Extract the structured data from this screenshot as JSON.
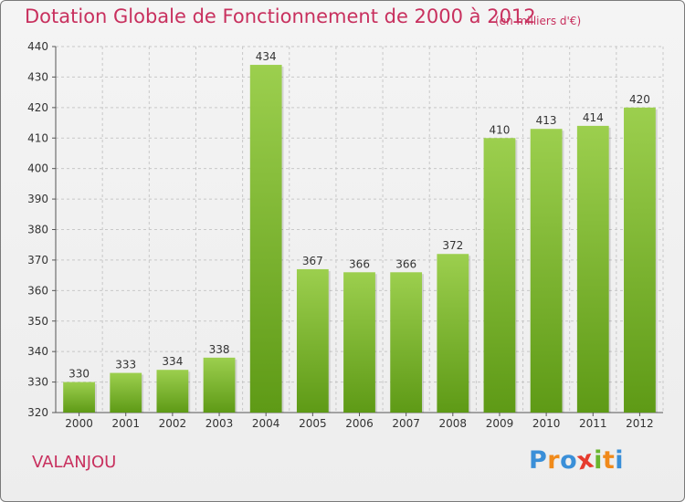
{
  "chart_data": {
    "type": "bar",
    "title": "Dotation Globale de Fonctionnement de 2000 à 2012",
    "unit_note": "(en milliers d'€)",
    "categories": [
      "2000",
      "2001",
      "2002",
      "2003",
      "2004",
      "2005",
      "2006",
      "2007",
      "2008",
      "2009",
      "2010",
      "2011",
      "2012"
    ],
    "values": [
      330,
      333,
      334,
      338,
      434,
      367,
      366,
      366,
      372,
      410,
      413,
      414,
      420
    ],
    "ylim": [
      320,
      440
    ],
    "yticks": [
      320,
      330,
      340,
      350,
      360,
      370,
      380,
      390,
      400,
      410,
      420,
      430,
      440
    ],
    "xlabel": "",
    "ylabel": "",
    "grid": true,
    "bar_color_top": "#9ccf4e",
    "bar_color_bottom": "#5e9a16"
  },
  "footer": {
    "commune": "VALANJOU",
    "brand_letters": [
      "P",
      "r",
      "o",
      "x",
      "i",
      "t",
      "i"
    ],
    "brand_colors": [
      "#3a8fd8",
      "#f08a1a",
      "#3a8fd8",
      "#e63b2e",
      "#69b52e",
      "#f08a1a",
      "#3a8fd8"
    ]
  }
}
